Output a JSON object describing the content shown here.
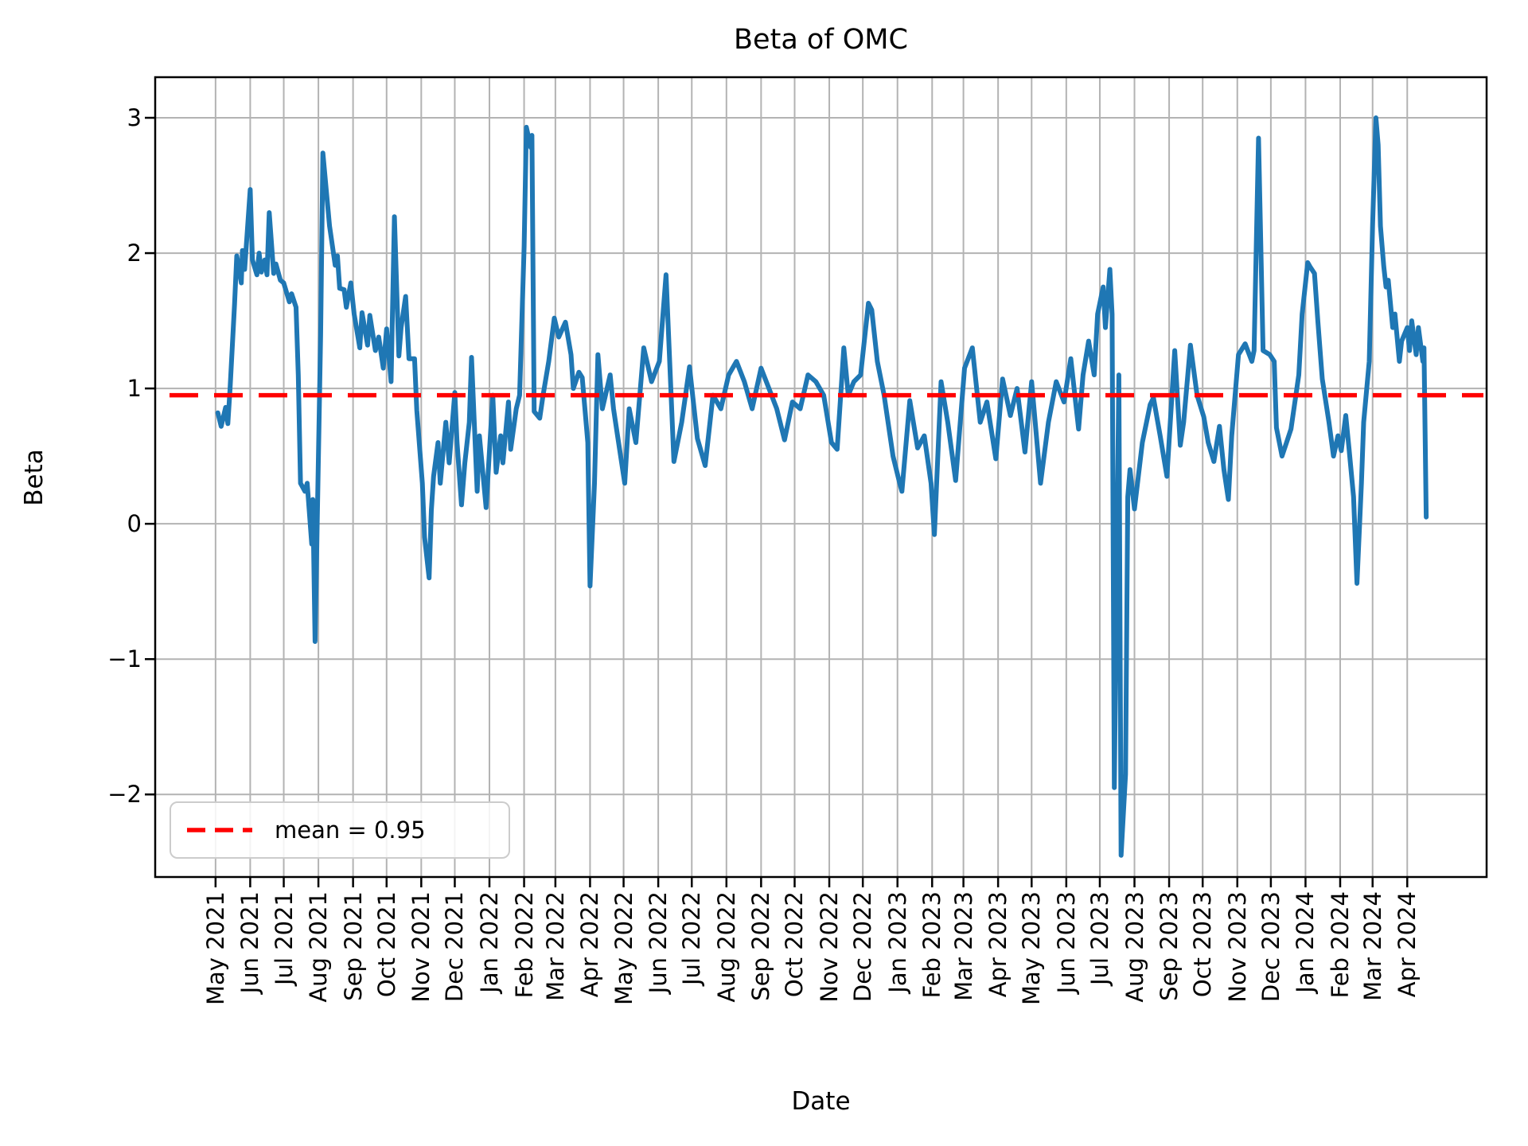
{
  "title": "Beta of OMC",
  "legend": {
    "label": "mean = 0.95"
  },
  "colors": {
    "line": "#1f77b4",
    "mean": "#ff0000",
    "grid": "#b3b3b3",
    "spine": "#000000",
    "legend_border": "#cccccc"
  },
  "chart_data": {
    "type": "line",
    "title": "Beta of OMC",
    "xlabel": "Date",
    "ylabel": "Beta",
    "ylim": [
      -2.61,
      3.3
    ],
    "xlim": [
      "2021-03-08",
      "2024-06-11"
    ],
    "ytick_values": [
      3,
      2,
      1,
      0,
      -1,
      -2
    ],
    "ytick_labels": [
      "3",
      "2",
      "1",
      "0",
      "−1",
      "−2"
    ],
    "xtick_labels": [
      "May 2021",
      "Jun 2021",
      "Jul 2021",
      "Aug 2021",
      "Sep 2021",
      "Oct 2021",
      "Nov 2021",
      "Dec 2021",
      "Jan 2022",
      "Feb 2022",
      "Mar 2022",
      "Apr 2022",
      "May 2022",
      "Jun 2022",
      "Jul 2022",
      "Aug 2022",
      "Sep 2022",
      "Oct 2022",
      "Nov 2022",
      "Dec 2022",
      "Jan 2023",
      "Feb 2023",
      "Mar 2023",
      "Apr 2023",
      "May 2023",
      "Jun 2023",
      "Jul 2023",
      "Aug 2023",
      "Sep 2023",
      "Oct 2023",
      "Nov 2023",
      "Dec 2023",
      "Jan 2024",
      "Feb 2024",
      "Mar 2024",
      "Apr 2024"
    ],
    "grid": true,
    "legend_position": "lower left",
    "mean_line": {
      "value": 0.95,
      "style": "dashed",
      "color": "#ff0000",
      "label": "mean = 0.95"
    },
    "series": [
      {
        "name": "Beta of OMC",
        "color": "#1f77b4",
        "points": [
          [
            "2021-05-03",
            0.82
          ],
          [
            "2021-05-06",
            0.72
          ],
          [
            "2021-05-10",
            0.86
          ],
          [
            "2021-05-12",
            0.74
          ],
          [
            "2021-05-14",
            1.0
          ],
          [
            "2021-05-18",
            1.62
          ],
          [
            "2021-05-20",
            1.98
          ],
          [
            "2021-05-24",
            1.78
          ],
          [
            "2021-05-25",
            2.02
          ],
          [
            "2021-05-27",
            1.88
          ],
          [
            "2021-06-01",
            2.47
          ],
          [
            "2021-06-03",
            1.95
          ],
          [
            "2021-06-07",
            1.84
          ],
          [
            "2021-06-09",
            2.0
          ],
          [
            "2021-06-11",
            1.86
          ],
          [
            "2021-06-14",
            1.95
          ],
          [
            "2021-06-16",
            1.84
          ],
          [
            "2021-06-18",
            2.3
          ],
          [
            "2021-06-22",
            1.85
          ],
          [
            "2021-06-24",
            1.92
          ],
          [
            "2021-06-28",
            1.8
          ],
          [
            "2021-07-01",
            1.78
          ],
          [
            "2021-07-06",
            1.64
          ],
          [
            "2021-07-08",
            1.7
          ],
          [
            "2021-07-12",
            1.6
          ],
          [
            "2021-07-14",
            1.1
          ],
          [
            "2021-07-16",
            0.3
          ],
          [
            "2021-07-20",
            0.24
          ],
          [
            "2021-07-22",
            0.3
          ],
          [
            "2021-07-26",
            -0.15
          ],
          [
            "2021-07-27",
            0.18
          ],
          [
            "2021-07-29",
            -0.87
          ],
          [
            "2021-08-03",
            1.4
          ],
          [
            "2021-08-05",
            2.74
          ],
          [
            "2021-08-09",
            2.38
          ],
          [
            "2021-08-11",
            2.2
          ],
          [
            "2021-08-16",
            1.91
          ],
          [
            "2021-08-18",
            1.98
          ],
          [
            "2021-08-20",
            1.74
          ],
          [
            "2021-08-24",
            1.73
          ],
          [
            "2021-08-26",
            1.6
          ],
          [
            "2021-08-30",
            1.78
          ],
          [
            "2021-09-02",
            1.55
          ],
          [
            "2021-09-07",
            1.3
          ],
          [
            "2021-09-09",
            1.56
          ],
          [
            "2021-09-14",
            1.32
          ],
          [
            "2021-09-16",
            1.54
          ],
          [
            "2021-09-21",
            1.28
          ],
          [
            "2021-09-24",
            1.38
          ],
          [
            "2021-09-28",
            1.15
          ],
          [
            "2021-10-01",
            1.44
          ],
          [
            "2021-10-05",
            1.05
          ],
          [
            "2021-10-08",
            2.27
          ],
          [
            "2021-10-12",
            1.24
          ],
          [
            "2021-10-14",
            1.45
          ],
          [
            "2021-10-18",
            1.68
          ],
          [
            "2021-10-21",
            1.22
          ],
          [
            "2021-10-26",
            1.22
          ],
          [
            "2021-10-28",
            0.84
          ],
          [
            "2021-11-02",
            0.3
          ],
          [
            "2021-11-04",
            -0.1
          ],
          [
            "2021-11-08",
            -0.4
          ],
          [
            "2021-11-10",
            0.1
          ],
          [
            "2021-11-12",
            0.35
          ],
          [
            "2021-11-16",
            0.6
          ],
          [
            "2021-11-18",
            0.3
          ],
          [
            "2021-11-23",
            0.75
          ],
          [
            "2021-11-26",
            0.45
          ],
          [
            "2021-12-01",
            0.97
          ],
          [
            "2021-12-03",
            0.6
          ],
          [
            "2021-12-07",
            0.14
          ],
          [
            "2021-12-10",
            0.45
          ],
          [
            "2021-12-14",
            0.75
          ],
          [
            "2021-12-16",
            1.23
          ],
          [
            "2021-12-21",
            0.24
          ],
          [
            "2021-12-23",
            0.65
          ],
          [
            "2021-12-29",
            0.12
          ],
          [
            "2022-01-04",
            0.95
          ],
          [
            "2022-01-07",
            0.38
          ],
          [
            "2022-01-11",
            0.65
          ],
          [
            "2022-01-13",
            0.45
          ],
          [
            "2022-01-18",
            0.9
          ],
          [
            "2022-01-20",
            0.55
          ],
          [
            "2022-01-25",
            0.85
          ],
          [
            "2022-01-28",
            0.95
          ],
          [
            "2022-02-01",
            2.05
          ],
          [
            "2022-02-03",
            2.93
          ],
          [
            "2022-02-07",
            2.78
          ],
          [
            "2022-02-08",
            2.87
          ],
          [
            "2022-02-10",
            0.83
          ],
          [
            "2022-02-15",
            0.78
          ],
          [
            "2022-02-18",
            0.95
          ],
          [
            "2022-02-23",
            1.2
          ],
          [
            "2022-02-28",
            1.52
          ],
          [
            "2022-03-04",
            1.38
          ],
          [
            "2022-03-10",
            1.49
          ],
          [
            "2022-03-15",
            1.25
          ],
          [
            "2022-03-17",
            1.0
          ],
          [
            "2022-03-22",
            1.12
          ],
          [
            "2022-03-25",
            1.08
          ],
          [
            "2022-03-30",
            0.6
          ],
          [
            "2022-04-01",
            -0.46
          ],
          [
            "2022-04-05",
            0.3
          ],
          [
            "2022-04-08",
            1.25
          ],
          [
            "2022-04-12",
            0.85
          ],
          [
            "2022-04-19",
            1.1
          ],
          [
            "2022-04-22",
            0.85
          ],
          [
            "2022-04-26",
            0.63
          ],
          [
            "2022-05-02",
            0.3
          ],
          [
            "2022-05-06",
            0.85
          ],
          [
            "2022-05-12",
            0.6
          ],
          [
            "2022-05-19",
            1.3
          ],
          [
            "2022-05-26",
            1.05
          ],
          [
            "2022-06-02",
            1.2
          ],
          [
            "2022-06-08",
            1.84
          ],
          [
            "2022-06-15",
            0.46
          ],
          [
            "2022-06-22",
            0.75
          ],
          [
            "2022-06-29",
            1.16
          ],
          [
            "2022-07-06",
            0.63
          ],
          [
            "2022-07-13",
            0.43
          ],
          [
            "2022-07-20",
            0.95
          ],
          [
            "2022-07-27",
            0.85
          ],
          [
            "2022-08-03",
            1.1
          ],
          [
            "2022-08-10",
            1.2
          ],
          [
            "2022-08-17",
            1.05
          ],
          [
            "2022-08-24",
            0.85
          ],
          [
            "2022-09-01",
            1.15
          ],
          [
            "2022-09-08",
            1.0
          ],
          [
            "2022-09-15",
            0.85
          ],
          [
            "2022-09-22",
            0.62
          ],
          [
            "2022-09-29",
            0.9
          ],
          [
            "2022-10-06",
            0.85
          ],
          [
            "2022-10-13",
            1.1
          ],
          [
            "2022-10-20",
            1.05
          ],
          [
            "2022-10-27",
            0.95
          ],
          [
            "2022-11-03",
            0.6
          ],
          [
            "2022-11-08",
            0.55
          ],
          [
            "2022-11-14",
            1.3
          ],
          [
            "2022-11-18",
            0.95
          ],
          [
            "2022-11-23",
            1.05
          ],
          [
            "2022-11-29",
            1.1
          ],
          [
            "2022-12-06",
            1.63
          ],
          [
            "2022-12-09",
            1.58
          ],
          [
            "2022-12-14",
            1.2
          ],
          [
            "2022-12-20",
            0.95
          ],
          [
            "2022-12-28",
            0.5
          ],
          [
            "2023-01-03",
            0.3
          ],
          [
            "2023-01-05",
            0.24
          ],
          [
            "2023-01-12",
            0.91
          ],
          [
            "2023-01-19",
            0.56
          ],
          [
            "2023-01-25",
            0.65
          ],
          [
            "2023-01-31",
            0.3
          ],
          [
            "2023-02-03",
            -0.08
          ],
          [
            "2023-02-09",
            1.05
          ],
          [
            "2023-02-15",
            0.75
          ],
          [
            "2023-02-22",
            0.32
          ],
          [
            "2023-03-02",
            1.15
          ],
          [
            "2023-03-09",
            1.3
          ],
          [
            "2023-03-16",
            0.75
          ],
          [
            "2023-03-22",
            0.9
          ],
          [
            "2023-03-30",
            0.48
          ],
          [
            "2023-04-05",
            1.07
          ],
          [
            "2023-04-12",
            0.8
          ],
          [
            "2023-04-18",
            1.0
          ],
          [
            "2023-04-25",
            0.53
          ],
          [
            "2023-05-01",
            1.05
          ],
          [
            "2023-05-09",
            0.3
          ],
          [
            "2023-05-16",
            0.75
          ],
          [
            "2023-05-23",
            1.05
          ],
          [
            "2023-05-30",
            0.9
          ],
          [
            "2023-06-05",
            1.22
          ],
          [
            "2023-06-12",
            0.7
          ],
          [
            "2023-06-16",
            1.1
          ],
          [
            "2023-06-21",
            1.35
          ],
          [
            "2023-06-26",
            1.1
          ],
          [
            "2023-06-29",
            1.55
          ],
          [
            "2023-07-04",
            1.75
          ],
          [
            "2023-07-06",
            1.45
          ],
          [
            "2023-07-10",
            1.88
          ],
          [
            "2023-07-12",
            1.55
          ],
          [
            "2023-07-14",
            -1.95
          ],
          [
            "2023-07-18",
            1.1
          ],
          [
            "2023-07-20",
            -2.45
          ],
          [
            "2023-07-24",
            -1.85
          ],
          [
            "2023-07-26",
            0.2
          ],
          [
            "2023-07-28",
            0.4
          ],
          [
            "2023-08-01",
            0.11
          ],
          [
            "2023-08-08",
            0.6
          ],
          [
            "2023-08-15",
            0.88
          ],
          [
            "2023-08-18",
            0.93
          ],
          [
            "2023-08-24",
            0.65
          ],
          [
            "2023-08-30",
            0.35
          ],
          [
            "2023-09-06",
            1.28
          ],
          [
            "2023-09-11",
            0.58
          ],
          [
            "2023-09-14",
            0.75
          ],
          [
            "2023-09-20",
            1.32
          ],
          [
            "2023-09-26",
            0.95
          ],
          [
            "2023-10-02",
            0.79
          ],
          [
            "2023-10-06",
            0.6
          ],
          [
            "2023-10-11",
            0.46
          ],
          [
            "2023-10-16",
            0.72
          ],
          [
            "2023-10-20",
            0.4
          ],
          [
            "2023-10-24",
            0.18
          ],
          [
            "2023-10-27",
            0.65
          ],
          [
            "2023-11-02",
            1.25
          ],
          [
            "2023-11-08",
            1.33
          ],
          [
            "2023-11-14",
            1.2
          ],
          [
            "2023-11-16",
            1.28
          ],
          [
            "2023-11-20",
            2.85
          ],
          [
            "2023-11-24",
            1.28
          ],
          [
            "2023-11-30",
            1.25
          ],
          [
            "2023-12-04",
            1.2
          ],
          [
            "2023-12-06",
            0.71
          ],
          [
            "2023-12-11",
            0.5
          ],
          [
            "2023-12-15",
            0.6
          ],
          [
            "2023-12-19",
            0.7
          ],
          [
            "2023-12-26",
            1.1
          ],
          [
            "2023-12-29",
            1.55
          ],
          [
            "2024-01-03",
            1.93
          ],
          [
            "2024-01-05",
            1.9
          ],
          [
            "2024-01-09",
            1.85
          ],
          [
            "2024-01-12",
            1.5
          ],
          [
            "2024-01-16",
            1.07
          ],
          [
            "2024-01-22",
            0.75
          ],
          [
            "2024-01-26",
            0.5
          ],
          [
            "2024-01-30",
            0.65
          ],
          [
            "2024-02-02",
            0.54
          ],
          [
            "2024-02-06",
            0.8
          ],
          [
            "2024-02-09",
            0.55
          ],
          [
            "2024-02-13",
            0.2
          ],
          [
            "2024-02-16",
            -0.44
          ],
          [
            "2024-02-20",
            0.3
          ],
          [
            "2024-02-22",
            0.75
          ],
          [
            "2024-02-27",
            1.2
          ],
          [
            "2024-03-01",
            2.2
          ],
          [
            "2024-03-04",
            3.0
          ],
          [
            "2024-03-06",
            2.8
          ],
          [
            "2024-03-08",
            2.2
          ],
          [
            "2024-03-11",
            1.9
          ],
          [
            "2024-03-13",
            1.75
          ],
          [
            "2024-03-15",
            1.8
          ],
          [
            "2024-03-19",
            1.45
          ],
          [
            "2024-03-21",
            1.55
          ],
          [
            "2024-03-25",
            1.2
          ],
          [
            "2024-03-27",
            1.35
          ],
          [
            "2024-04-01",
            1.45
          ],
          [
            "2024-04-03",
            1.28
          ],
          [
            "2024-04-05",
            1.5
          ],
          [
            "2024-04-09",
            1.25
          ],
          [
            "2024-04-11",
            1.45
          ],
          [
            "2024-04-15",
            1.2
          ],
          [
            "2024-04-16",
            1.3
          ],
          [
            "2024-04-18",
            0.05
          ]
        ]
      }
    ]
  }
}
